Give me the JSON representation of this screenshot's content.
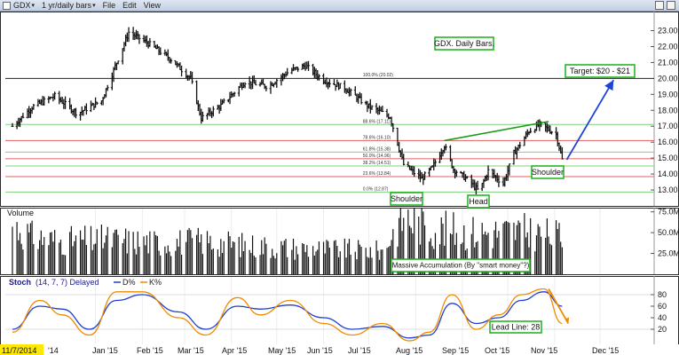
{
  "toolbar": {
    "symbol": "GDX",
    "period": "1 yr/daily bars",
    "menu_file": "File",
    "menu_edit": "Edit",
    "menu_view": "View"
  },
  "chart_data": [
    {
      "type": "candlestick",
      "title": "GDX. Daily Bars.",
      "x_range": [
        "2014-11-07",
        "2015-12-31"
      ],
      "ylim": [
        12.0,
        24.2
      ],
      "y_ticks": [
        "23.00",
        "22.00",
        "21.00",
        "20.00",
        "19.00",
        "18.00",
        "17.00",
        "16.00",
        "15.00",
        "14.00",
        "13.00"
      ],
      "y_tick_values": [
        23,
        22,
        21,
        20,
        19,
        18,
        17,
        16,
        15,
        14,
        13
      ],
      "x_ticks": [
        "11/7/2014",
        "'14",
        "Jan '15",
        "Feb '15",
        "Mar '15",
        "Apr '15",
        "May '15",
        "Jun '15",
        "Jul '15",
        "Aug '15",
        "Sep '15",
        "Oct '15",
        "Nov '15",
        "Dec '15"
      ],
      "price_path": [
        [
          "2014-11-07",
          17.0
        ],
        [
          "2014-11-20",
          18.2
        ],
        [
          "2014-12-05",
          18.9
        ],
        [
          "2014-12-20",
          17.8
        ],
        [
          "2015-01-05",
          18.6
        ],
        [
          "2015-01-15",
          21.0
        ],
        [
          "2015-01-23",
          22.9
        ],
        [
          "2015-02-05",
          22.2
        ],
        [
          "2015-02-20",
          21.2
        ],
        [
          "2015-03-05",
          20.0
        ],
        [
          "2015-03-12",
          17.5
        ],
        [
          "2015-03-25",
          18.3
        ],
        [
          "2015-04-10",
          19.8
        ],
        [
          "2015-04-25",
          19.5
        ],
        [
          "2015-05-10",
          20.5
        ],
        [
          "2015-05-20",
          20.8
        ],
        [
          "2015-06-01",
          19.9
        ],
        [
          "2015-06-15",
          19.4
        ],
        [
          "2015-06-30",
          18.3
        ],
        [
          "2015-07-15",
          17.6
        ],
        [
          "2015-07-24",
          14.6
        ],
        [
          "2015-08-05",
          13.7
        ],
        [
          "2015-08-12",
          14.4
        ],
        [
          "2015-08-20",
          15.8
        ],
        [
          "2015-08-26",
          14.3
        ],
        [
          "2015-09-05",
          13.6
        ],
        [
          "2015-09-12",
          12.9
        ],
        [
          "2015-09-18",
          14.2
        ],
        [
          "2015-09-28",
          13.4
        ],
        [
          "2015-10-05",
          15.3
        ],
        [
          "2015-10-15",
          16.7
        ],
        [
          "2015-10-22",
          17.1
        ],
        [
          "2015-10-28",
          16.8
        ],
        [
          "2015-11-02",
          16.5
        ],
        [
          "2015-11-06",
          14.9
        ]
      ],
      "fib_levels": [
        {
          "label": "100.0% (20.02)",
          "value": 20.02
        },
        {
          "label": "88.6% (17.11)",
          "value": 17.11
        },
        {
          "label": "78.6% (16.10)",
          "value": 16.1
        },
        {
          "label": "61.8% (15.38)",
          "value": 15.38
        },
        {
          "label": "50.0% (14.96)",
          "value": 14.96
        },
        {
          "label": "38.2% (14.51)",
          "value": 14.51
        },
        {
          "label": "23.6% (13.84)",
          "value": 13.84
        },
        {
          "label": "0.0% (12.87)",
          "value": 12.87
        }
      ],
      "annotations": {
        "target": "Target: $20 - $21",
        "left_shoulder": "Shoulder",
        "head": "Head",
        "right_shoulder": "Shoulder"
      }
    },
    {
      "type": "bar",
      "title": "Volume",
      "ylim": [
        0,
        80
      ],
      "y_ticks": [
        "75.0M",
        "50.0M",
        "25.0M"
      ],
      "y_tick_values": [
        75,
        50,
        25
      ],
      "volume_path": [
        [
          "2014-11-07",
          60
        ],
        [
          "2014-11-20",
          45
        ],
        [
          "2014-12-10",
          40
        ],
        [
          "2015-01-10",
          42
        ],
        [
          "2015-02-10",
          38
        ],
        [
          "2015-03-10",
          40
        ],
        [
          "2015-04-10",
          35
        ],
        [
          "2015-05-10",
          32
        ],
        [
          "2015-06-10",
          30
        ],
        [
          "2015-07-10",
          28
        ],
        [
          "2015-07-24",
          70
        ],
        [
          "2015-08-10",
          55
        ],
        [
          "2015-09-10",
          50
        ],
        [
          "2015-10-10",
          52
        ],
        [
          "2015-11-06",
          45
        ]
      ],
      "annotation": "Massive Accumulation (By \"smart money\"?)"
    },
    {
      "type": "line",
      "title": "Stoch",
      "params": "(14, 7, 7) Delayed",
      "ylim": [
        0,
        100
      ],
      "y_ticks": [
        "80",
        "60",
        "40",
        "20"
      ],
      "y_tick_values": [
        80,
        60,
        40,
        20
      ],
      "series": [
        {
          "name": "D%",
          "color": "#1f3fd0",
          "values": [
            [
              "2014-11-07",
              20
            ],
            [
              "2014-11-25",
              60
            ],
            [
              "2014-12-10",
              55
            ],
            [
              "2014-12-28",
              20
            ],
            [
              "2015-01-15",
              70
            ],
            [
              "2015-02-01",
              80
            ],
            [
              "2015-02-25",
              50
            ],
            [
              "2015-03-15",
              20
            ],
            [
              "2015-04-05",
              60
            ],
            [
              "2015-04-20",
              55
            ],
            [
              "2015-05-10",
              62
            ],
            [
              "2015-06-01",
              40
            ],
            [
              "2015-06-20",
              20
            ],
            [
              "2015-07-10",
              25
            ],
            [
              "2015-07-28",
              5
            ],
            [
              "2015-08-10",
              10
            ],
            [
              "2015-08-25",
              65
            ],
            [
              "2015-09-10",
              30
            ],
            [
              "2015-09-25",
              40
            ],
            [
              "2015-10-10",
              70
            ],
            [
              "2015-10-25",
              85
            ],
            [
              "2015-11-06",
              60
            ]
          ]
        },
        {
          "name": "K%",
          "color": "#f08a00",
          "values": [
            [
              "2014-11-07",
              15
            ],
            [
              "2014-11-25",
              70
            ],
            [
              "2014-12-10",
              45
            ],
            [
              "2014-12-28",
              10
            ],
            [
              "2015-01-15",
              85
            ],
            [
              "2015-02-01",
              85
            ],
            [
              "2015-02-25",
              40
            ],
            [
              "2015-03-15",
              10
            ],
            [
              "2015-04-05",
              75
            ],
            [
              "2015-04-20",
              45
            ],
            [
              "2015-05-10",
              70
            ],
            [
              "2015-06-01",
              30
            ],
            [
              "2015-06-20",
              10
            ],
            [
              "2015-07-10",
              30
            ],
            [
              "2015-07-28",
              0
            ],
            [
              "2015-08-10",
              15
            ],
            [
              "2015-08-25",
              80
            ],
            [
              "2015-09-10",
              20
            ],
            [
              "2015-09-25",
              45
            ],
            [
              "2015-10-10",
              80
            ],
            [
              "2015-10-25",
              90
            ],
            [
              "2015-11-06",
              30
            ]
          ]
        }
      ],
      "annotation": "Lead Line: 28"
    }
  ],
  "colors": {
    "panel_border": "#2b2b2b",
    "price_bar": "#111111",
    "annotation_green": "#17b417",
    "trend_green": "#1a9a1a",
    "target_arrow": "#1f43d6",
    "line_20": "#222222",
    "fib_red": "#e06060",
    "fib_green": "#7fd27f",
    "date_highlight": "#ffe800"
  }
}
